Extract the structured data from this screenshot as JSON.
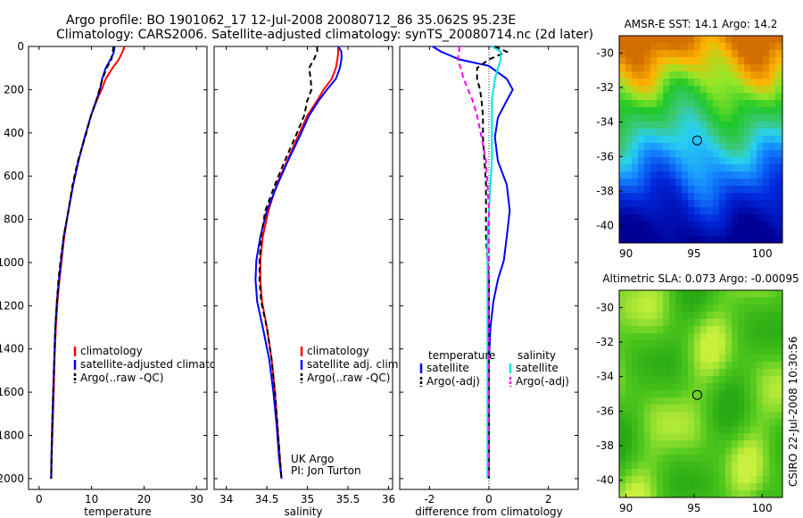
{
  "header": {
    "line1": "Argo profile: BO 1901062_17 12-Jul-2008 20080712_86 35.062S 95.23E",
    "line2": "Climatology: CARS2006. Satellite-adjusted climatology: synTS_20080714.nc (2d later)"
  },
  "credits": {
    "institution": "UK Argo",
    "pi": "PI: Jon Turton",
    "stamp": "CSIRO 22-Jul-2008 10:30:56"
  },
  "colors": {
    "climatology": "#ff0000",
    "satellite": "#0000ff",
    "argo": "#000000",
    "salinity_satellite": "#00e5e5",
    "salinity_argo": "#ff00ff"
  },
  "chart_data": [
    {
      "type": "line",
      "panel": "temperature",
      "xlabel": "temperature",
      "ylabel": "",
      "xlim": [
        -2,
        32
      ],
      "ylim": [
        2050,
        0
      ],
      "xticks": [
        0,
        10,
        20,
        30
      ],
      "yticks": [
        0,
        200,
        400,
        600,
        800,
        1000,
        1200,
        1400,
        1600,
        1800,
        2000
      ],
      "legend": [
        "climatology",
        "satellite-adjusted climatology",
        "Argo(..raw -QC)"
      ],
      "series": [
        {
          "name": "climatology",
          "color": "#ff0000",
          "x": [
            16.3,
            15.9,
            15.2,
            14.0,
            12.7,
            11.9,
            11.0,
            9.9,
            8.7,
            7.5,
            6.5,
            5.6,
            4.8,
            4.3,
            3.9,
            3.5,
            3.2,
            2.95,
            2.8,
            2.6,
            2.4,
            2.35
          ],
          "y": [
            0,
            25,
            60,
            100,
            150,
            200,
            250,
            320,
            420,
            530,
            640,
            760,
            880,
            990,
            1080,
            1180,
            1300,
            1450,
            1600,
            1750,
            1900,
            2000
          ]
        },
        {
          "name": "satellite-adjusted climatology",
          "color": "#0000ff",
          "x": [
            14.4,
            14.2,
            13.6,
            12.7,
            12.0,
            11.6,
            10.9,
            9.9,
            8.7,
            7.5,
            6.5,
            5.6,
            4.7,
            4.2,
            3.8,
            3.4,
            3.1,
            2.9,
            2.7,
            2.5,
            2.35,
            2.3
          ],
          "y": [
            0,
            30,
            60,
            100,
            150,
            200,
            250,
            320,
            420,
            530,
            640,
            760,
            880,
            990,
            1080,
            1180,
            1300,
            1450,
            1600,
            1750,
            1900,
            2000
          ]
        },
        {
          "name": "Argo(..raw -QC)",
          "color": "#000000",
          "dash": true,
          "x": [
            14.2,
            14.0,
            13.8,
            12.9,
            12.1,
            11.5,
            10.9,
            9.9,
            8.8,
            7.4,
            6.4,
            5.6,
            4.7,
            4.1,
            3.7,
            3.4,
            3.1,
            2.9,
            2.7,
            2.5,
            2.4,
            2.3
          ],
          "y": [
            0,
            30,
            60,
            100,
            150,
            200,
            250,
            320,
            420,
            530,
            640,
            760,
            880,
            990,
            1080,
            1180,
            1300,
            1450,
            1600,
            1750,
            1900,
            2000
          ]
        }
      ]
    },
    {
      "type": "line",
      "panel": "salinity",
      "xlabel": "salinity",
      "ylabel": "",
      "xlim": [
        33.85,
        36.05
      ],
      "ylim": [
        2050,
        0
      ],
      "xticks": [
        34,
        34.5,
        35,
        35.5,
        36
      ],
      "yticks": [],
      "legend": [
        "climatology",
        "satellite adj. clim.",
        "Argo(..raw -QC)"
      ],
      "series": [
        {
          "name": "climatology",
          "color": "#ff0000",
          "x": [
            35.38,
            35.38,
            35.37,
            35.35,
            35.3,
            35.2,
            35.12,
            35.0,
            34.88,
            34.75,
            34.62,
            34.52,
            34.45,
            34.42,
            34.42,
            34.44,
            34.5,
            34.56,
            34.6,
            34.63,
            34.66,
            34.68
          ],
          "y": [
            0,
            25,
            60,
            100,
            150,
            200,
            250,
            320,
            420,
            530,
            640,
            760,
            880,
            990,
            1080,
            1180,
            1300,
            1450,
            1600,
            1750,
            1900,
            2000
          ]
        },
        {
          "name": "satellite adj. clim.",
          "color": "#0000ff",
          "x": [
            35.38,
            35.42,
            35.42,
            35.4,
            35.35,
            35.24,
            35.14,
            35.02,
            34.9,
            34.76,
            34.63,
            34.5,
            34.42,
            34.37,
            34.36,
            34.38,
            34.45,
            34.53,
            34.58,
            34.62,
            34.65,
            34.68
          ],
          "y": [
            0,
            25,
            60,
            100,
            150,
            200,
            250,
            320,
            420,
            530,
            640,
            760,
            880,
            990,
            1080,
            1180,
            1300,
            1450,
            1600,
            1750,
            1900,
            2000
          ]
        },
        {
          "name": "Argo(..raw -QC)",
          "color": "#000000",
          "dash": true,
          "x": [
            35.12,
            35.12,
            35.08,
            35.02,
            35.04,
            35.05,
            35.0,
            34.96,
            34.85,
            34.72,
            34.6,
            34.48,
            34.43,
            34.41,
            34.41,
            34.43,
            34.5,
            34.56,
            34.6,
            34.63,
            34.66,
            34.68
          ],
          "y": [
            0,
            25,
            60,
            100,
            150,
            200,
            250,
            320,
            420,
            530,
            640,
            760,
            880,
            990,
            1080,
            1180,
            1300,
            1450,
            1600,
            1750,
            1900,
            2000
          ]
        }
      ]
    },
    {
      "type": "line",
      "panel": "difference",
      "xlabel": "difference from climatology",
      "ylabel": "",
      "xlim": [
        -3,
        3
      ],
      "ylim": [
        2050,
        0
      ],
      "xticks": [
        -2,
        0,
        2
      ],
      "yticks": [],
      "legend_headers": [
        "temperature",
        "salinity"
      ],
      "legend": [
        "satellite",
        "Argo(-adj)",
        "satellite",
        "Argo(-adj)"
      ],
      "series": [
        {
          "name": "satellite",
          "group": "temperature",
          "color": "#0000ff",
          "x": [
            -1.9,
            -1.6,
            -1.0,
            0.0,
            0.6,
            0.8,
            0.6,
            0.3,
            0.2,
            0.3,
            0.6,
            0.7,
            0.6,
            0.5,
            0.3,
            0.15,
            0.05,
            0.0,
            0.0,
            0.0,
            0.0,
            0.0
          ],
          "y": [
            0,
            25,
            60,
            90,
            150,
            200,
            250,
            330,
            420,
            530,
            640,
            760,
            880,
            990,
            1080,
            1180,
            1300,
            1450,
            1600,
            1750,
            1900,
            2000
          ]
        },
        {
          "name": "Argo(-adj)",
          "group": "temperature",
          "color": "#000000",
          "dash": true,
          "x": [
            0.2,
            0.6,
            0.0,
            -0.4,
            -0.4,
            -0.3,
            -0.25,
            -0.2,
            -0.2,
            -0.15,
            -0.1,
            -0.1,
            -0.1,
            -0.05,
            0.0,
            0.0,
            0.0,
            0.0,
            0.0,
            0.0,
            0.0,
            0.0
          ],
          "y": [
            0,
            25,
            60,
            100,
            150,
            200,
            250,
            320,
            420,
            530,
            640,
            760,
            880,
            990,
            1080,
            1180,
            1300,
            1450,
            1600,
            1750,
            1900,
            2000
          ]
        },
        {
          "name": "satellite",
          "group": "salinity",
          "color": "#00e5e5",
          "x": [
            0.1,
            0.4,
            0.4,
            0.3,
            0.2,
            0.15,
            0.1,
            0.1,
            0.1,
            0.1,
            0.05,
            0.0,
            -0.05,
            -0.05,
            -0.05,
            -0.05,
            -0.05,
            -0.05,
            -0.05,
            -0.05,
            -0.05,
            -0.05
          ],
          "y": [
            0,
            25,
            60,
            100,
            150,
            200,
            250,
            320,
            420,
            530,
            640,
            760,
            880,
            990,
            1080,
            1180,
            1300,
            1450,
            1600,
            1750,
            1900,
            2000
          ]
        },
        {
          "name": "Argo(-adj)",
          "group": "salinity",
          "color": "#ff00ff",
          "dash": true,
          "x": [
            -1.0,
            -1.0,
            -1.05,
            -0.95,
            -0.85,
            -0.7,
            -0.55,
            -0.4,
            -0.25,
            -0.1,
            -0.05,
            0.0,
            0.0,
            0.0,
            0.0,
            0.0,
            0.0,
            0.0,
            0.0,
            0.0,
            0.0,
            0.0
          ],
          "y": [
            0,
            25,
            60,
            100,
            150,
            200,
            250,
            320,
            420,
            530,
            640,
            760,
            880,
            990,
            1080,
            1180,
            1300,
            1450,
            1600,
            1750,
            1900,
            2000
          ]
        }
      ]
    },
    {
      "type": "heatmap",
      "panel": "sst-map",
      "title": "AMSR-E SST: 14.1 Argo: 14.2",
      "xlim": [
        89.5,
        101.5
      ],
      "ylim": [
        -41,
        -29
      ],
      "xticks": [
        90,
        95,
        100
      ],
      "yticks": [
        -30,
        -32,
        -34,
        -36,
        -38,
        -40
      ],
      "marker": {
        "lon": 95.23,
        "lat": -35.062
      }
    },
    {
      "type": "heatmap",
      "panel": "sla-map",
      "title": "Altimetric SLA: 0.073 Argo: -0.00095",
      "xlim": [
        89.5,
        101.5
      ],
      "ylim": [
        -41,
        -29
      ],
      "xticks": [
        90,
        95,
        100
      ],
      "yticks": [
        -30,
        -32,
        -34,
        -36,
        -38,
        -40
      ],
      "marker": {
        "lon": 95.23,
        "lat": -35.062
      }
    }
  ]
}
